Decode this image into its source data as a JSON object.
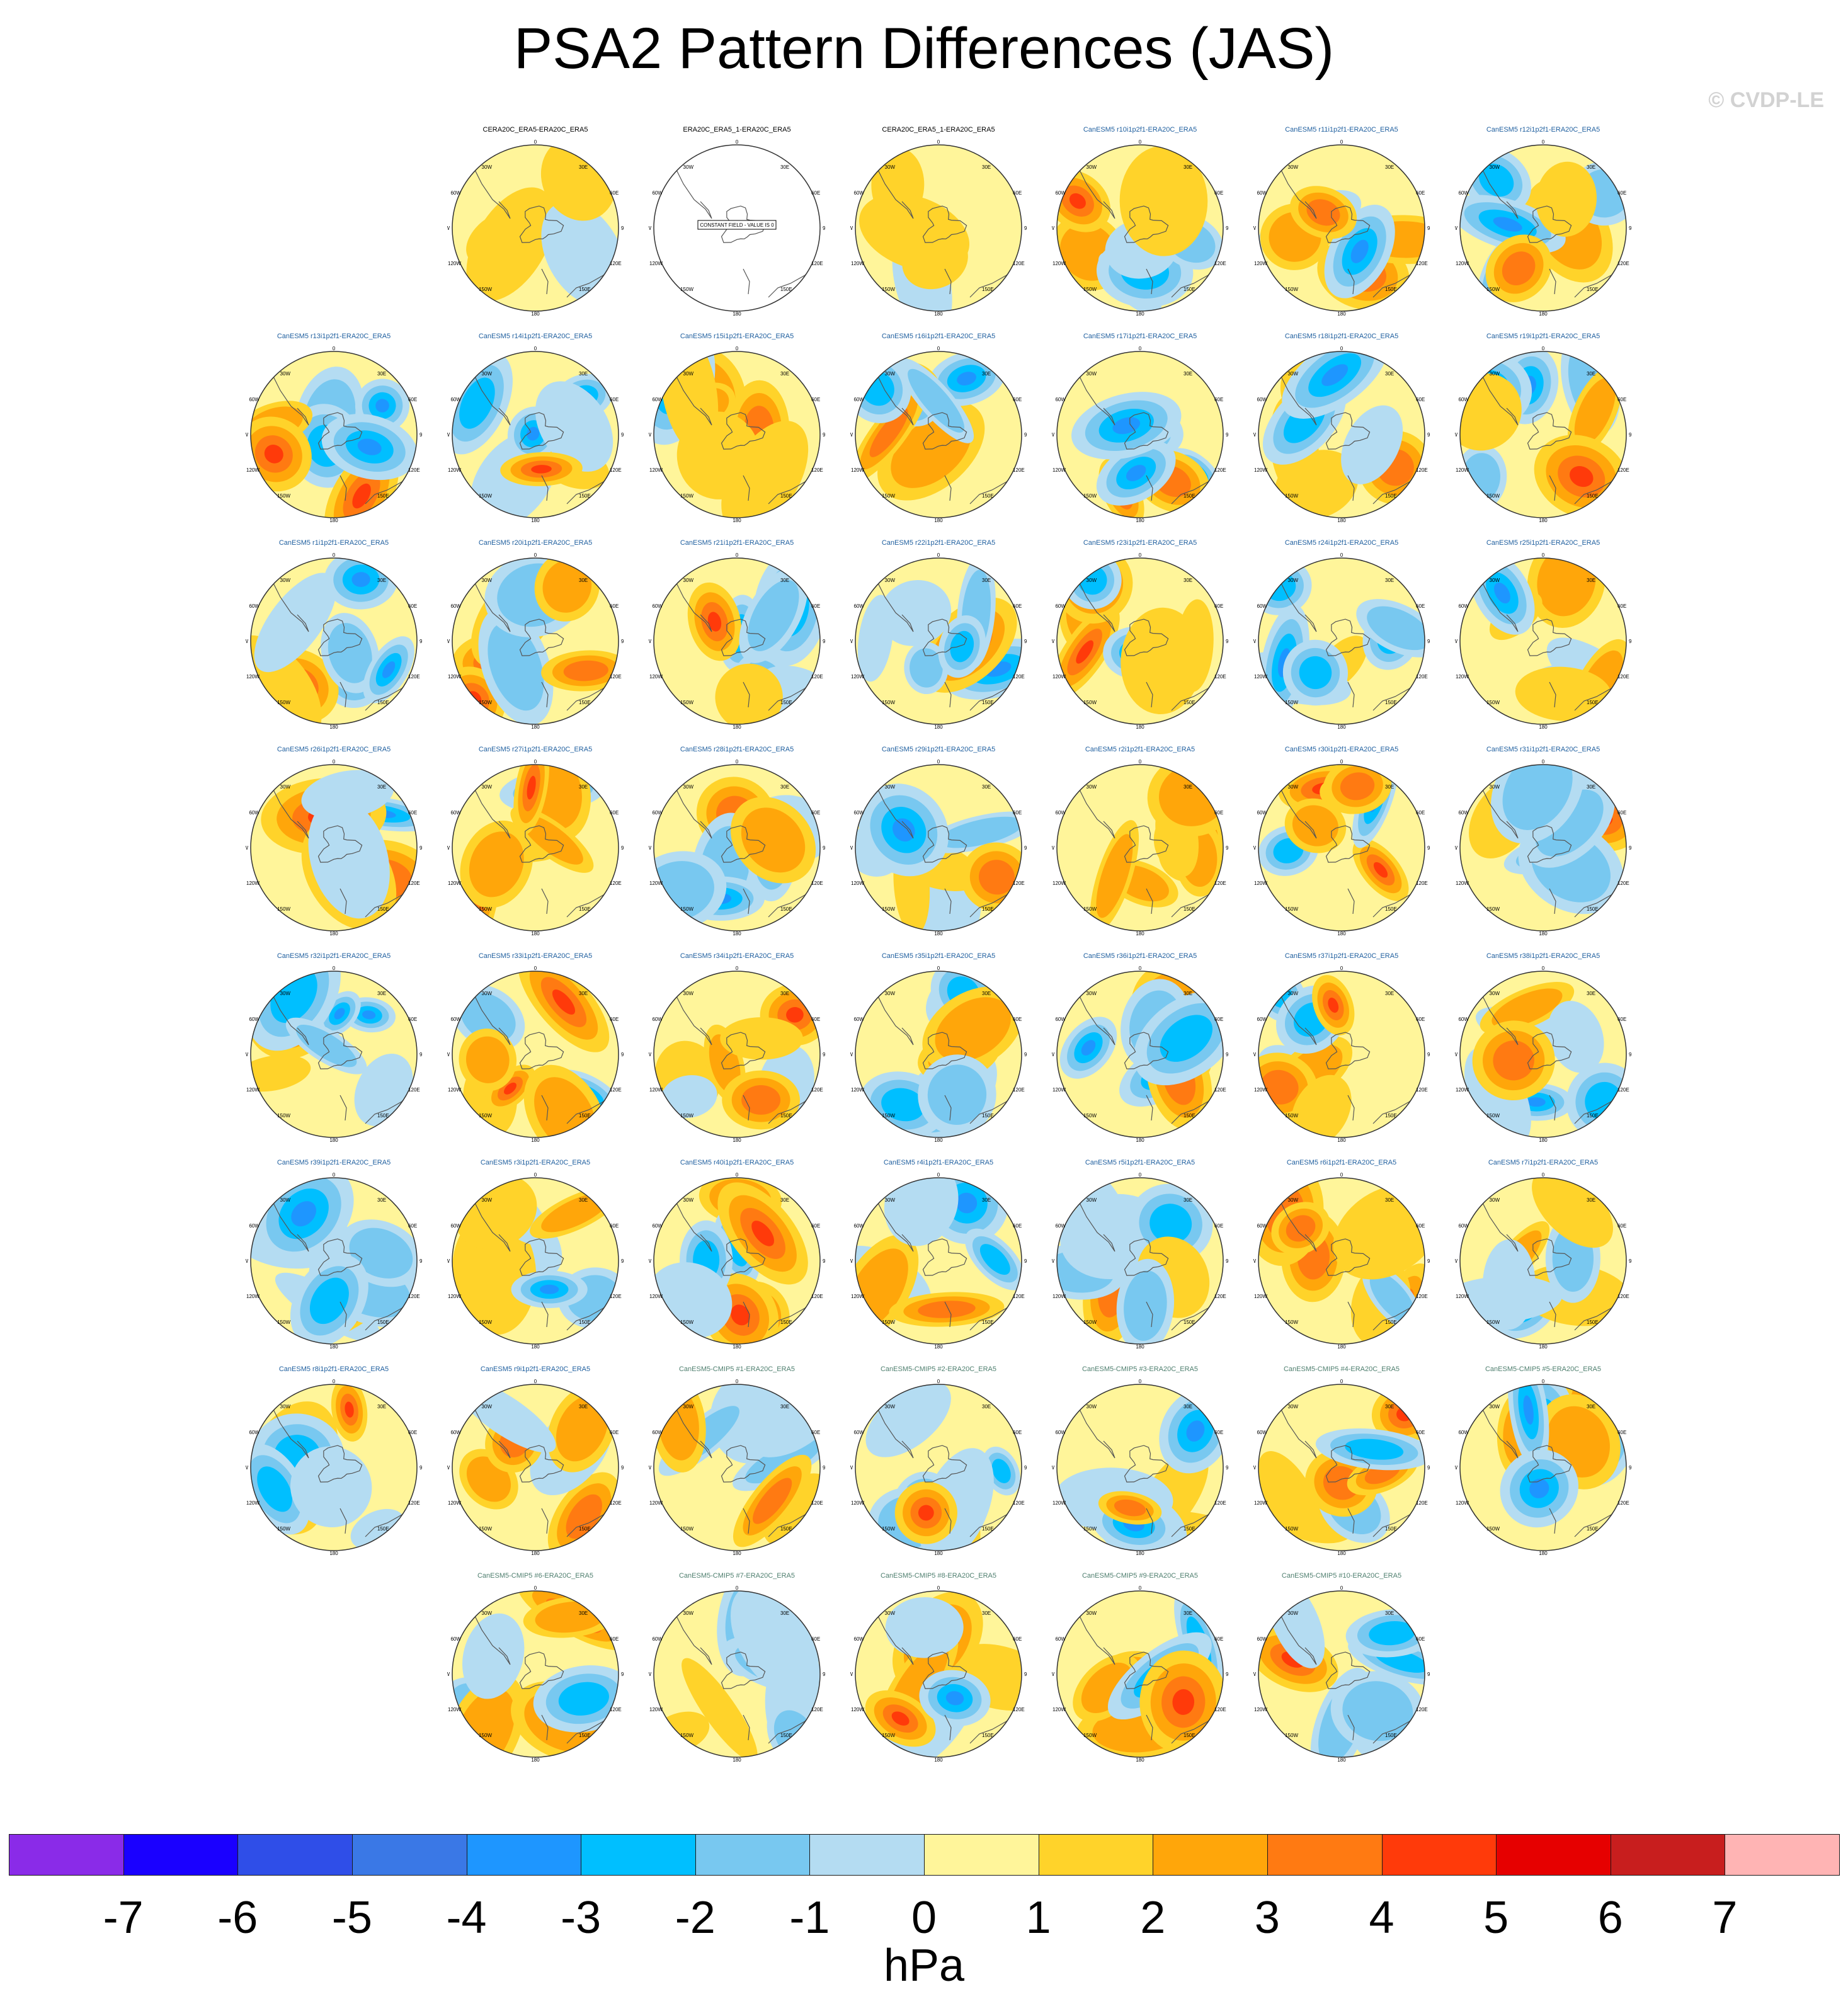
{
  "title": "PSA2 Pattern Differences (JAS)",
  "watermark": "© CVDP-LE",
  "panels": [
    {
      "label": "CERA20C_ERA5-ERA20C_ERA5",
      "kind": "obs"
    },
    {
      "label": "ERA20C_ERA5_1-ERA20C_ERA5",
      "kind": "constant",
      "note": "CONSTANT FIELD - VALUE IS 0"
    },
    {
      "label": "CERA20C_ERA5_1-ERA20C_ERA5",
      "kind": "obs"
    },
    {
      "label": "CanESM5 r10i1p2f1-ERA20C_ERA5",
      "kind": "model"
    },
    {
      "label": "CanESM5 r11i1p2f1-ERA20C_ERA5",
      "kind": "model"
    },
    {
      "label": "CanESM5 r12i1p2f1-ERA20C_ERA5",
      "kind": "model"
    },
    {
      "label": "CanESM5 r13i1p2f1-ERA20C_ERA5",
      "kind": "model"
    },
    {
      "label": "CanESM5 r14i1p2f1-ERA20C_ERA5",
      "kind": "model"
    },
    {
      "label": "CanESM5 r15i1p2f1-ERA20C_ERA5",
      "kind": "model"
    },
    {
      "label": "CanESM5 r16i1p2f1-ERA20C_ERA5",
      "kind": "model"
    },
    {
      "label": "CanESM5 r17i1p2f1-ERA20C_ERA5",
      "kind": "model"
    },
    {
      "label": "CanESM5 r18i1p2f1-ERA20C_ERA5",
      "kind": "model"
    },
    {
      "label": "CanESM5 r19i1p2f1-ERA20C_ERA5",
      "kind": "model"
    },
    {
      "label": "CanESM5 r1i1p2f1-ERA20C_ERA5",
      "kind": "model"
    },
    {
      "label": "CanESM5 r20i1p2f1-ERA20C_ERA5",
      "kind": "model"
    },
    {
      "label": "CanESM5 r21i1p2f1-ERA20C_ERA5",
      "kind": "model"
    },
    {
      "label": "CanESM5 r22i1p2f1-ERA20C_ERA5",
      "kind": "model"
    },
    {
      "label": "CanESM5 r23i1p2f1-ERA20C_ERA5",
      "kind": "model"
    },
    {
      "label": "CanESM5 r24i1p2f1-ERA20C_ERA5",
      "kind": "model"
    },
    {
      "label": "CanESM5 r25i1p2f1-ERA20C_ERA5",
      "kind": "model"
    },
    {
      "label": "CanESM5 r26i1p2f1-ERA20C_ERA5",
      "kind": "model"
    },
    {
      "label": "CanESM5 r27i1p2f1-ERA20C_ERA5",
      "kind": "model"
    },
    {
      "label": "CanESM5 r28i1p2f1-ERA20C_ERA5",
      "kind": "model"
    },
    {
      "label": "CanESM5 r29i1p2f1-ERA20C_ERA5",
      "kind": "model"
    },
    {
      "label": "CanESM5 r2i1p2f1-ERA20C_ERA5",
      "kind": "model"
    },
    {
      "label": "CanESM5 r30i1p2f1-ERA20C_ERA5",
      "kind": "model"
    },
    {
      "label": "CanESM5 r31i1p2f1-ERA20C_ERA5",
      "kind": "model"
    },
    {
      "label": "CanESM5 r32i1p2f1-ERA20C_ERA5",
      "kind": "model"
    },
    {
      "label": "CanESM5 r33i1p2f1-ERA20C_ERA5",
      "kind": "model"
    },
    {
      "label": "CanESM5 r34i1p2f1-ERA20C_ERA5",
      "kind": "model"
    },
    {
      "label": "CanESM5 r35i1p2f1-ERA20C_ERA5",
      "kind": "model"
    },
    {
      "label": "CanESM5 r36i1p2f1-ERA20C_ERA5",
      "kind": "model"
    },
    {
      "label": "CanESM5 r37i1p2f1-ERA20C_ERA5",
      "kind": "model"
    },
    {
      "label": "CanESM5 r38i1p2f1-ERA20C_ERA5",
      "kind": "model"
    },
    {
      "label": "CanESM5 r39i1p2f1-ERA20C_ERA5",
      "kind": "model"
    },
    {
      "label": "CanESM5 r3i1p2f1-ERA20C_ERA5",
      "kind": "model"
    },
    {
      "label": "CanESM5 r40i1p2f1-ERA20C_ERA5",
      "kind": "model"
    },
    {
      "label": "CanESM5 r4i1p2f1-ERA20C_ERA5",
      "kind": "model"
    },
    {
      "label": "CanESM5 r5i1p2f1-ERA20C_ERA5",
      "kind": "model"
    },
    {
      "label": "CanESM5 r6i1p2f1-ERA20C_ERA5",
      "kind": "model"
    },
    {
      "label": "CanESM5 r7i1p2f1-ERA20C_ERA5",
      "kind": "model"
    },
    {
      "label": "CanESM5 r8i1p2f1-ERA20C_ERA5",
      "kind": "model"
    },
    {
      "label": "CanESM5 r9i1p2f1-ERA20C_ERA5",
      "kind": "model"
    },
    {
      "label": "CanESM5-CMIP5 #1-ERA20C_ERA5",
      "kind": "cmip5"
    },
    {
      "label": "CanESM5-CMIP5 #2-ERA20C_ERA5",
      "kind": "cmip5"
    },
    {
      "label": "CanESM5-CMIP5 #3-ERA20C_ERA5",
      "kind": "cmip5"
    },
    {
      "label": "CanESM5-CMIP5 #4-ERA20C_ERA5",
      "kind": "cmip5"
    },
    {
      "label": "CanESM5-CMIP5 #5-ERA20C_ERA5",
      "kind": "cmip5"
    },
    {
      "label": "CanESM5-CMIP5 #6-ERA20C_ERA5",
      "kind": "cmip5"
    },
    {
      "label": "CanESM5-CMIP5 #7-ERA20C_ERA5",
      "kind": "cmip5"
    },
    {
      "label": "CanESM5-CMIP5 #8-ERA20C_ERA5",
      "kind": "cmip5"
    },
    {
      "label": "CanESM5-CMIP5 #9-ERA20C_ERA5",
      "kind": "cmip5"
    },
    {
      "label": "CanESM5-CMIP5 #10-ERA20C_ERA5",
      "kind": "cmip5"
    }
  ],
  "map_labels": {
    "top": "0",
    "bottom": "180",
    "left": [
      "30W",
      "60W",
      "90W",
      "120W",
      "150W"
    ],
    "right": [
      "30E",
      "60E",
      "90E",
      "120E",
      "150E"
    ]
  },
  "title_colors": {
    "obs": "#000000",
    "constant": "#000000",
    "model": "#1f5f9f",
    "cmip5": "#4f7f6f"
  },
  "colorbar": {
    "colors": [
      "#8a2be8",
      "#1a00ff",
      "#2f4ee8",
      "#3a78e6",
      "#1e96ff",
      "#00bfff",
      "#78c8f0",
      "#b4dcf2",
      "#fff59a",
      "#ffd32a",
      "#ffa60a",
      "#ff7a12",
      "#ff3a0a",
      "#e60000",
      "#c81e1e",
      "#ffb4b4"
    ],
    "tick_labels": [
      "-7",
      "-6",
      "-5",
      "-4",
      "-3",
      "-2",
      "-1",
      "0",
      "1",
      "2",
      "3",
      "4",
      "5",
      "6",
      "7"
    ],
    "units": "hPa"
  }
}
